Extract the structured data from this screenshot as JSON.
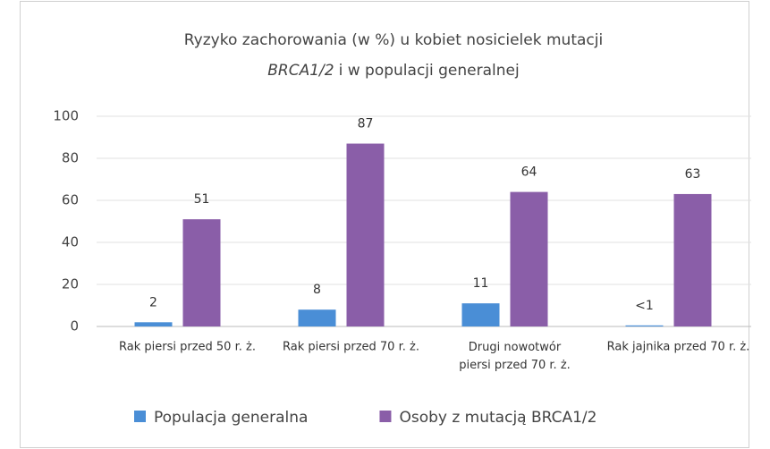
{
  "chart_data": {
    "type": "bar",
    "title": [
      "Ryzyko zachorowania (w %) u kobiet nosicielek mutacji",
      "BRCA1/2",
      "i w populacji generalnej"
    ],
    "categories": [
      "Rak piersi przed 50 r. ż.",
      "Rak piersi przed 70 r. ż.",
      "Drugi nowotwór piersi przed 70 r. ż.",
      "Rak jajnika przed 70 r. ż."
    ],
    "series": [
      {
        "name": "Populacja generalna",
        "color": "#4a8ed6",
        "values": [
          2,
          8,
          11,
          0.5
        ],
        "value_labels": [
          "2",
          "8",
          "11",
          "<1"
        ]
      },
      {
        "name": "Osoby z mutacją BRCA1/2",
        "color": "#8a5ea8",
        "values": [
          51,
          87,
          64,
          63
        ]
      }
    ],
    "ylim": [
      0,
      100
    ],
    "yticks": [
      0,
      20,
      40,
      60,
      80,
      100
    ],
    "grid": true
  }
}
